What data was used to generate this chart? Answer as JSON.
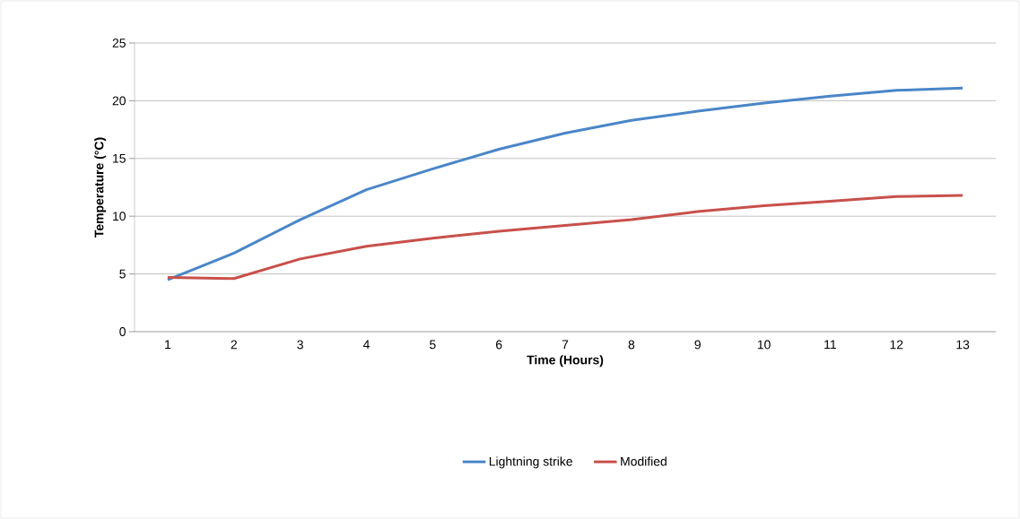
{
  "chart_data": {
    "type": "line",
    "xlabel": "Time (Hours)",
    "ylabel": "Temperature (°C)",
    "categories": [
      "1",
      "2",
      "3",
      "4",
      "5",
      "6",
      "7",
      "8",
      "9",
      "10",
      "11",
      "12",
      "13"
    ],
    "series": [
      {
        "name": "Lightning strike",
        "color": "#4a86c8",
        "values": [
          4.5,
          6.8,
          9.7,
          12.3,
          14.1,
          15.8,
          17.2,
          18.3,
          19.1,
          19.8,
          20.4,
          20.9,
          21.1
        ]
      },
      {
        "name": "Modified",
        "color": "#c8504b",
        "values": [
          4.7,
          4.6,
          6.3,
          7.4,
          8.1,
          8.7,
          9.2,
          9.7,
          10.4,
          10.9,
          11.3,
          11.7,
          11.8
        ]
      }
    ],
    "ylim": [
      0,
      25
    ],
    "yticks": [
      0,
      5,
      10,
      15,
      20,
      25
    ],
    "grid": "y",
    "legend": "bottom",
    "marker": "none",
    "line_style": "solid"
  }
}
